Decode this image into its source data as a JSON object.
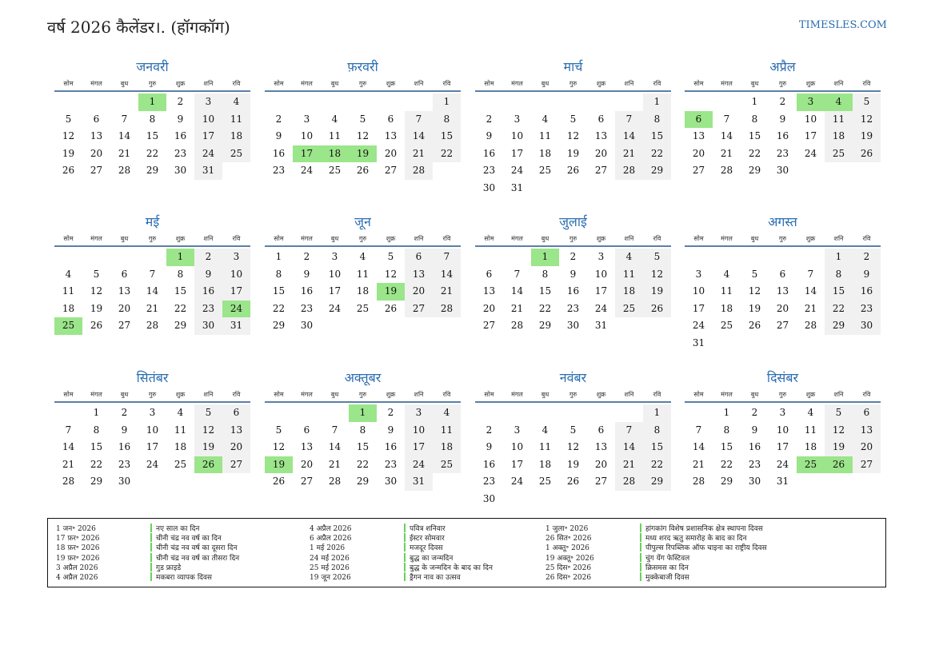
{
  "header": {
    "title": "वर्ष 2026 कैलेंडर।. (हॉगकॉग)",
    "site": "TIMESLES.COM"
  },
  "weekdays": [
    "सोम",
    "मंगल",
    "बुध",
    "गुरु",
    "शुक्र",
    "शनि",
    "रवि"
  ],
  "months": [
    {
      "name": "जनवरी",
      "offset": 3,
      "days": 31,
      "holidays": [
        1
      ]
    },
    {
      "name": "फ़रवरी",
      "offset": 6,
      "days": 28,
      "holidays": [
        17,
        18,
        19
      ]
    },
    {
      "name": "मार्च",
      "offset": 6,
      "days": 31,
      "holidays": []
    },
    {
      "name": "अप्रैल",
      "offset": 2,
      "days": 30,
      "holidays": [
        3,
        4,
        6
      ]
    },
    {
      "name": "मई",
      "offset": 4,
      "days": 31,
      "holidays": [
        1,
        24,
        25
      ]
    },
    {
      "name": "जून",
      "offset": 0,
      "days": 30,
      "holidays": [
        19
      ]
    },
    {
      "name": "जुलाई",
      "offset": 2,
      "days": 31,
      "holidays": [
        1
      ]
    },
    {
      "name": "अगस्त",
      "offset": 5,
      "days": 31,
      "holidays": []
    },
    {
      "name": "सितंबर",
      "offset": 1,
      "days": 30,
      "holidays": [
        26
      ]
    },
    {
      "name": "अक्तूबर",
      "offset": 3,
      "days": 31,
      "holidays": [
        1,
        19
      ]
    },
    {
      "name": "नवंबर",
      "offset": 6,
      "days": 30,
      "holidays": []
    },
    {
      "name": "दिसंबर",
      "offset": 1,
      "days": 31,
      "holidays": [
        25,
        26
      ]
    }
  ],
  "legend": [
    [
      {
        "date": "1 जन॰ 2026",
        "name": "नए साल का दिन"
      },
      {
        "date": "17 फ़र॰ 2026",
        "name": "चीनी चंद्र नव वर्ष का दिन"
      },
      {
        "date": "18 फ़र॰ 2026",
        "name": "चीनी चंद्र नव वर्ष का दूसरा दिन"
      },
      {
        "date": "19 फ़र॰ 2026",
        "name": "चीनी चंद्र नव वर्ष का तीसरा दिन"
      },
      {
        "date": "3 अप्रैल 2026",
        "name": "गुड फ्राइडे"
      },
      {
        "date": "4 अप्रैल 2026",
        "name": "मकबरा व्यापक दिवस"
      }
    ],
    [
      {
        "date": "4 अप्रैल 2026",
        "name": "पवित्र शनिवार"
      },
      {
        "date": "6 अप्रैल 2026",
        "name": "ईस्टर सोमवार"
      },
      {
        "date": "1 मई 2026",
        "name": "मजदूर दिवस"
      },
      {
        "date": "24 मई 2026",
        "name": "बुद्ध का जन्मदिन"
      },
      {
        "date": "25 मई 2026",
        "name": "बुद्ध के जन्मदिन के बाद का दिन"
      },
      {
        "date": "19 जून 2026",
        "name": "ड्रैगन नाव का उत्सव"
      }
    ],
    [
      {
        "date": "1 जुला॰ 2026",
        "name": "हांगकांग विशेष प्रशासनिक क्षेत्र स्थापना दिवस"
      },
      {
        "date": "26 सित॰ 2026",
        "name": "मध्य शरद ऋतु समारोह के बाद का दिन"
      },
      {
        "date": "1 अक्तू॰ 2026",
        "name": "पीपुल्स रिपब्लिक ऑफ चाइना का राष्ट्रीय दिवस"
      },
      {
        "date": "19 अक्तू॰ 2026",
        "name": "चुंग येंग फेस्टिवल"
      },
      {
        "date": "25 दिस॰ 2026",
        "name": "क्रिसमस का दिन"
      },
      {
        "date": "26 दिस॰ 2026",
        "name": "मुक्केबाजी दिवस"
      }
    ]
  ]
}
